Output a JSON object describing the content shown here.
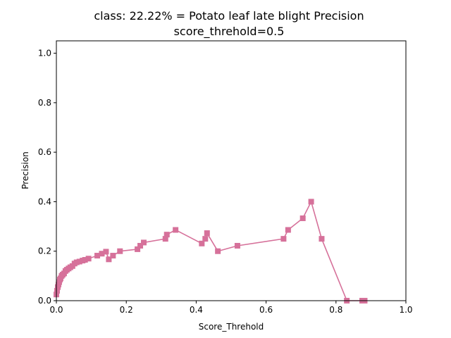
{
  "chart_data": {
    "type": "line",
    "title_line1": "class: 22.22% = Potato leaf late blight Precision",
    "title_line2": "score_threhold=0.5",
    "xlabel": "Score_Threhold",
    "ylabel": "Precision",
    "xlim": [
      0.0,
      1.0
    ],
    "ylim": [
      0.0,
      1.05
    ],
    "x_ticks": [
      "0.0",
      "0.2",
      "0.4",
      "0.6",
      "0.8",
      "1.0"
    ],
    "y_ticks": [
      "0.0",
      "0.2",
      "0.4",
      "0.6",
      "0.8",
      "1.0"
    ],
    "grid": false,
    "series": [
      {
        "color": "#d6719a",
        "marker": "square",
        "x": [
          0.0,
          0.002,
          0.004,
          0.006,
          0.008,
          0.01,
          0.012,
          0.015,
          0.018,
          0.022,
          0.026,
          0.03,
          0.035,
          0.04,
          0.046,
          0.052,
          0.058,
          0.066,
          0.075,
          0.082,
          0.092,
          0.117,
          0.13,
          0.142,
          0.15,
          0.162,
          0.182,
          0.232,
          0.24,
          0.25,
          0.312,
          0.316,
          0.341,
          0.416,
          0.426,
          0.431,
          0.462,
          0.518,
          0.65,
          0.663,
          0.705,
          0.729,
          0.759,
          0.831,
          0.875,
          0.882
        ],
        "y": [
          0.025,
          0.04,
          0.055,
          0.065,
          0.075,
          0.085,
          0.09,
          0.1,
          0.105,
          0.11,
          0.12,
          0.125,
          0.13,
          0.135,
          0.14,
          0.15,
          0.155,
          0.158,
          0.162,
          0.165,
          0.17,
          0.182,
          0.19,
          0.198,
          0.167,
          0.182,
          0.2,
          0.208,
          0.222,
          0.235,
          0.25,
          0.267,
          0.286,
          0.231,
          0.25,
          0.273,
          0.2,
          0.222,
          0.25,
          0.286,
          0.333,
          0.4,
          0.25,
          0.0,
          0.0,
          0.0
        ]
      }
    ]
  }
}
